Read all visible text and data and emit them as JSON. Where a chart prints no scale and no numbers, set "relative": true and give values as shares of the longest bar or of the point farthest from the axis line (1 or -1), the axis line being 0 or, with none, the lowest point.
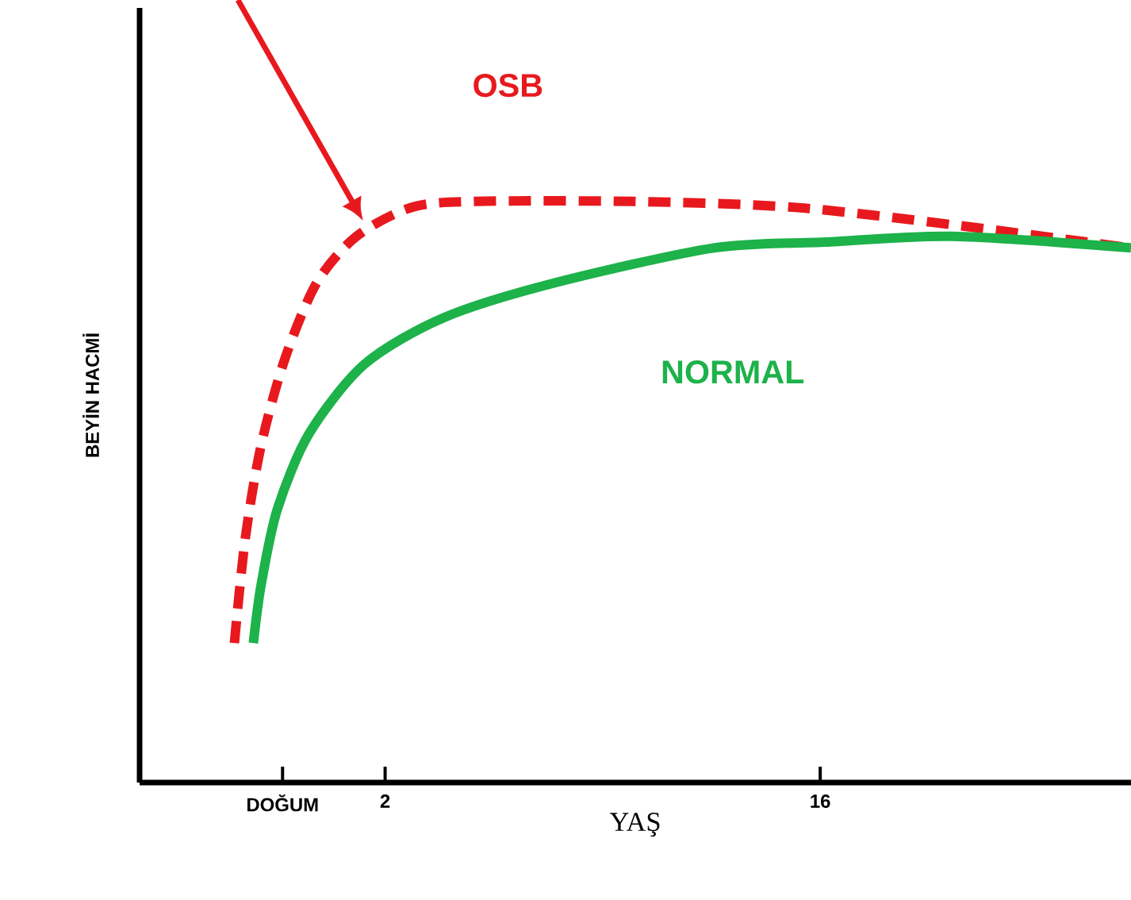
{
  "chart_data": {
    "type": "line",
    "relative": true,
    "xlabel": "YAŞ",
    "ylabel": "BEYİN HACMİ",
    "xlim": [
      -5.9,
      26
    ],
    "xticks": [
      {
        "value": -1.3,
        "label": "DOĞUM"
      },
      2,
      16
    ],
    "tick_labels": "x",
    "marker": "none",
    "series": [
      {
        "name": "OSB",
        "color": "#e8191e",
        "line_style": "dashed",
        "x": [
          -2.85,
          -2.5,
          -1.99,
          -1.22,
          -0.2,
          1.08,
          2.87,
          4.91,
          10.02,
          15.13,
          20.24,
          26.0
        ],
        "values": [
          0.24,
          0.42,
          0.58,
          0.73,
          0.86,
          0.94,
          0.99,
          1.0,
          1.0,
          0.99,
          0.96,
          0.92
        ]
      },
      {
        "name": "NORMAL",
        "color": "#1db24a",
        "line_style": "solid",
        "x": [
          -2.24,
          -1.99,
          -1.47,
          -0.45,
          1.34,
          3.89,
          7.47,
          12.58,
          16.15,
          20.24,
          26.0
        ],
        "values": [
          0.24,
          0.34,
          0.47,
          0.6,
          0.72,
          0.8,
          0.86,
          0.92,
          0.93,
          0.94,
          0.92
        ]
      }
    ]
  }
}
